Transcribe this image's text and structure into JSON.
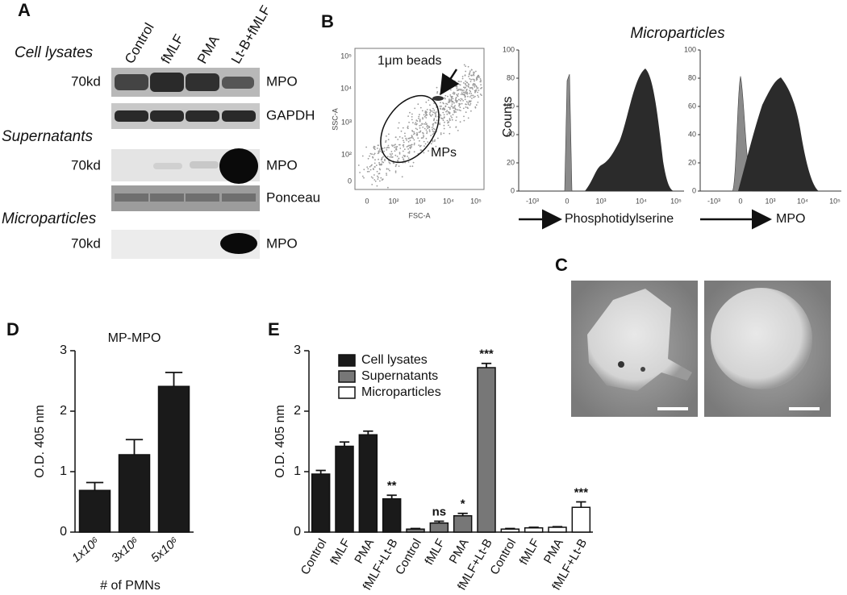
{
  "panel_a": {
    "label": "A",
    "lanes": [
      "Control",
      "fMLF",
      "PMA",
      "Lt-B+fMLF"
    ],
    "sections": [
      "Cell lysates",
      "Supernatants",
      "Microparticles"
    ],
    "rows": [
      {
        "marker": "70kd",
        "band": "MPO"
      },
      {
        "band": "GAPDH"
      },
      {
        "marker": "70kd",
        "band": "MPO"
      },
      {
        "band": "Ponceau"
      },
      {
        "marker": "70kd",
        "band": "MPO"
      }
    ]
  },
  "panel_b": {
    "label": "B",
    "title": "Microparticles",
    "scatter": {
      "bead_label": "1μm beads",
      "gate_label": "MPs",
      "xlabel": "FSC-A",
      "ylabel": "SSC-A",
      "xticks": [
        "0",
        "10²",
        "10³",
        "10⁴",
        "10⁵"
      ],
      "yticks": [
        "0",
        "10²",
        "10³",
        "10⁴",
        "10⁵"
      ]
    },
    "ylabel": "Counts",
    "histograms": [
      {
        "xlabel": "Phosphotidylserine",
        "xticks": [
          "-10³",
          "0",
          "10³",
          "10⁴",
          "10⁵"
        ],
        "ylim": [
          0,
          100
        ],
        "yticks": [
          0,
          20,
          40,
          60,
          80,
          100
        ]
      },
      {
        "xlabel": "MPO",
        "xticks": [
          "-10³",
          "0",
          "10³",
          "10⁴",
          "10⁵"
        ],
        "ylim": [
          0,
          100
        ],
        "yticks": [
          0,
          20,
          40,
          60,
          80,
          100
        ]
      }
    ]
  },
  "panel_c": {
    "label": "C"
  },
  "panel_d": {
    "label": "D"
  },
  "panel_e": {
    "label": "E"
  },
  "chart_data": [
    {
      "type": "bar",
      "title": "MP-MPO",
      "y_label": "O.D. 405 nm",
      "x_label": "# of PMNs",
      "categories": [
        "1x10⁶",
        "3x10⁶",
        "5x10⁶"
      ],
      "values": [
        0.69,
        1.28,
        2.41
      ],
      "errors": [
        0.13,
        0.25,
        0.23
      ],
      "color": "#1a1a1a",
      "ylim": [
        0,
        3
      ],
      "yticks": [
        0,
        1,
        2,
        3
      ]
    },
    {
      "type": "bar",
      "y_label": "O.D. 405 nm",
      "categories": [
        "Control",
        "fMLF",
        "PMA",
        "fMLF+Lt-B",
        "Control",
        "fMLF",
        "PMA",
        "fMLF+Lt-B",
        "Control",
        "fMLF",
        "PMA",
        "fMLF+Lt-B"
      ],
      "series": [
        {
          "name": "Cell lysates",
          "color": "#1a1a1a",
          "values": [
            0.96,
            1.42,
            1.61,
            0.55,
            null,
            null,
            null,
            null,
            null,
            null,
            null,
            null
          ],
          "errors": [
            0.06,
            0.07,
            0.06,
            0.06,
            null,
            null,
            null,
            null,
            null,
            null,
            null,
            null
          ]
        },
        {
          "name": "Supernatants",
          "color": "#777777",
          "values": [
            null,
            null,
            null,
            null,
            0.05,
            0.15,
            0.27,
            2.72,
            null,
            null,
            null,
            null
          ],
          "errors": [
            null,
            null,
            null,
            null,
            0.01,
            0.03,
            0.04,
            0.07,
            null,
            null,
            null,
            null
          ]
        },
        {
          "name": "Microparticles",
          "color": "#ffffff",
          "values": [
            null,
            null,
            null,
            null,
            null,
            null,
            null,
            null,
            0.05,
            0.07,
            0.08,
            0.41
          ],
          "errors": [
            null,
            null,
            null,
            null,
            null,
            null,
            null,
            null,
            0.01,
            0.01,
            0.01,
            0.09
          ]
        }
      ],
      "annotations": [
        null,
        null,
        null,
        "**",
        null,
        "ns",
        "*",
        "***",
        null,
        null,
        null,
        "***"
      ],
      "ylim": [
        0,
        3
      ],
      "yticks": [
        0,
        1,
        2,
        3
      ],
      "legend": "upper-left"
    }
  ]
}
